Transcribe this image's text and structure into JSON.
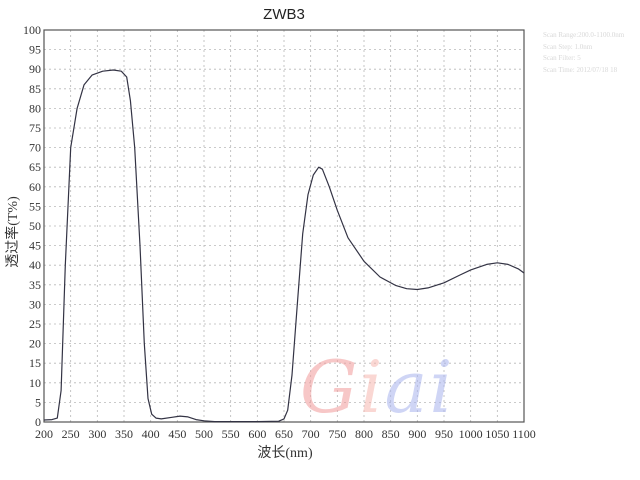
{
  "chart_data": {
    "type": "line",
    "title": "ZWB3",
    "xlabel": "波长(nm)",
    "ylabel": "透过率(T%)",
    "xlim": [
      200,
      1100
    ],
    "ylim": [
      0,
      100
    ],
    "xticks": [
      200,
      250,
      300,
      350,
      400,
      450,
      500,
      550,
      600,
      650,
      700,
      750,
      800,
      850,
      900,
      950,
      1000,
      1050,
      1100
    ],
    "yticks": [
      0,
      5,
      10,
      15,
      20,
      25,
      30,
      35,
      40,
      45,
      50,
      55,
      60,
      65,
      70,
      75,
      80,
      85,
      90,
      95,
      100
    ],
    "grid": true,
    "series": [
      {
        "x": [
          200,
          215,
          225,
          232,
          240,
          250,
          262,
          275,
          290,
          310,
          330,
          345,
          355,
          362,
          370,
          380,
          388,
          395,
          402,
          410,
          420,
          440,
          455,
          470,
          485,
          500,
          520,
          560,
          600,
          640,
          650,
          657,
          665,
          675,
          685,
          695,
          705,
          715,
          722,
          735,
          750,
          770,
          800,
          830,
          860,
          880,
          900,
          920,
          950,
          980,
          1000,
          1030,
          1050,
          1070,
          1090,
          1100
        ],
        "y": [
          0.5,
          0.6,
          1,
          8,
          40,
          70,
          80,
          86,
          88.5,
          89.5,
          89.8,
          89.5,
          88,
          82,
          70,
          45,
          20,
          6,
          2,
          1,
          0.8,
          1.2,
          1.5,
          1.3,
          0.6,
          0.3,
          0.1,
          0.1,
          0.1,
          0.2,
          0.8,
          3,
          12,
          30,
          48,
          58,
          63,
          65,
          64.5,
          60,
          54,
          47,
          41,
          37,
          34.8,
          34,
          33.8,
          34.2,
          35.5,
          37.5,
          38.8,
          40.2,
          40.6,
          40.2,
          39,
          38
        ]
      }
    ]
  },
  "info_lines": [
    "Scan Range:200.0-1100.0nm",
    "Scan Step: 1.0nm",
    "Scan Filter: 5",
    "Scan Time: 2012/07/18 18"
  ],
  "watermark": {
    "text": "Giai",
    "colors": [
      "#f29a9a",
      "#f7b7b0",
      "#a9b4ee",
      "#a9b4ee"
    ]
  },
  "colors": {
    "line": "#333344",
    "grid": "#b8b8b8",
    "axis": "#555"
  }
}
